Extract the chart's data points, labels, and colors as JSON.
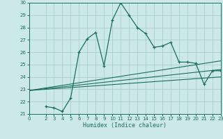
{
  "title": "",
  "xlabel": "Humidex (Indice chaleur)",
  "background_color": "#cce8e8",
  "grid_color": "#aacfcf",
  "line_color": "#1a6e60",
  "xlim": [
    0,
    23
  ],
  "ylim": [
    21,
    30
  ],
  "xticks": [
    0,
    2,
    3,
    4,
    5,
    6,
    7,
    8,
    9,
    10,
    11,
    12,
    13,
    14,
    15,
    16,
    17,
    18,
    19,
    20,
    21,
    22,
    23
  ],
  "yticks": [
    21,
    22,
    23,
    24,
    25,
    26,
    27,
    28,
    29,
    30
  ],
  "main_line_x": [
    2,
    3,
    4,
    5,
    6,
    7,
    8,
    9,
    10,
    11,
    12,
    13,
    14,
    15,
    16,
    17,
    18,
    19,
    20,
    21,
    22,
    23
  ],
  "main_line_y": [
    21.6,
    21.5,
    21.2,
    22.3,
    26.0,
    27.1,
    27.6,
    24.9,
    28.6,
    30.0,
    29.0,
    28.0,
    27.5,
    26.4,
    26.5,
    26.8,
    25.2,
    25.2,
    25.1,
    23.4,
    24.5,
    24.5
  ],
  "line2_x": [
    0,
    23
  ],
  "line2_y": [
    22.9,
    25.3
  ],
  "line3_x": [
    0,
    23
  ],
  "line3_y": [
    22.9,
    24.6
  ],
  "line4_x": [
    0,
    23
  ],
  "line4_y": [
    22.9,
    24.0
  ]
}
